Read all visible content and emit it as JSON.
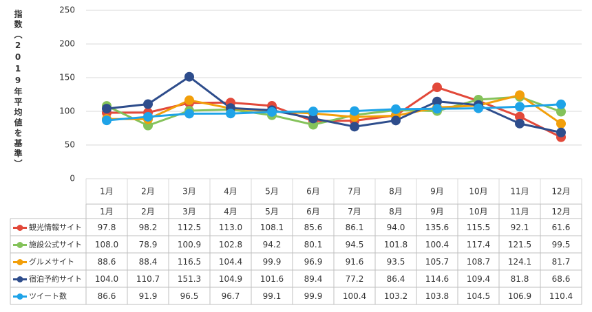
{
  "chart_data": {
    "type": "line",
    "ylabel": "指数（2019年平均値を基準）",
    "categories": [
      "1月",
      "2月",
      "3月",
      "4月",
      "5月",
      "6月",
      "7月",
      "8月",
      "9月",
      "10月",
      "11月",
      "12月"
    ],
    "ylim": [
      0,
      250
    ],
    "yticks": [
      0,
      50,
      100,
      150,
      200,
      250
    ],
    "grid": true,
    "data_table": true,
    "series": [
      {
        "name": "観光情報サイト",
        "color": "#e2493a",
        "values": [
          97.8,
          98.2,
          112.5,
          113.0,
          108.1,
          85.6,
          86.1,
          94.0,
          135.6,
          115.5,
          92.1,
          61.6
        ],
        "value_labels": [
          "97.8",
          "98.2",
          "112.5",
          "113.0",
          "108.1",
          "85.6",
          "86.1",
          "94.0",
          "135.6",
          "115.5",
          "92.1",
          "61.6"
        ]
      },
      {
        "name": "施設公式サイト",
        "color": "#84c25a",
        "values": [
          108.0,
          78.9,
          100.9,
          102.8,
          94.2,
          80.1,
          94.5,
          101.8,
          100.4,
          117.4,
          121.5,
          99.5
        ],
        "value_labels": [
          "108.0",
          "78.9",
          "100.9",
          "102.8",
          "94.2",
          "80.1",
          "94.5",
          "101.8",
          "100.4",
          "117.4",
          "121.5",
          "99.5"
        ]
      },
      {
        "name": "グルメサイト",
        "color": "#f29f0a",
        "values": [
          88.6,
          88.4,
          116.5,
          104.4,
          99.9,
          96.9,
          91.6,
          93.5,
          105.7,
          108.7,
          124.1,
          81.7
        ],
        "value_labels": [
          "88.6",
          "88.4",
          "116.5",
          "104.4",
          "99.9",
          "96.9",
          "91.6",
          "93.5",
          "105.7",
          "108.7",
          "124.1",
          "81.7"
        ]
      },
      {
        "name": "宿泊予約サイト",
        "color": "#2e4d8c",
        "values": [
          104.0,
          110.7,
          151.3,
          104.9,
          101.6,
          89.4,
          77.2,
          86.4,
          114.6,
          109.4,
          81.8,
          68.6
        ],
        "value_labels": [
          "104.0",
          "110.7",
          "151.3",
          "104.9",
          "101.6",
          "89.4",
          "77.2",
          "86.4",
          "114.6",
          "109.4",
          "81.8",
          "68.6"
        ]
      },
      {
        "name": "ツイート数",
        "color": "#1ea3e8",
        "values": [
          86.6,
          91.9,
          96.5,
          96.7,
          99.1,
          99.9,
          100.4,
          103.2,
          103.8,
          104.5,
          106.9,
          110.4
        ],
        "value_labels": [
          "86.6",
          "91.9",
          "96.5",
          "96.7",
          "99.1",
          "99.9",
          "100.4",
          "103.2",
          "103.8",
          "104.5",
          "106.9",
          "110.4"
        ]
      }
    ]
  }
}
